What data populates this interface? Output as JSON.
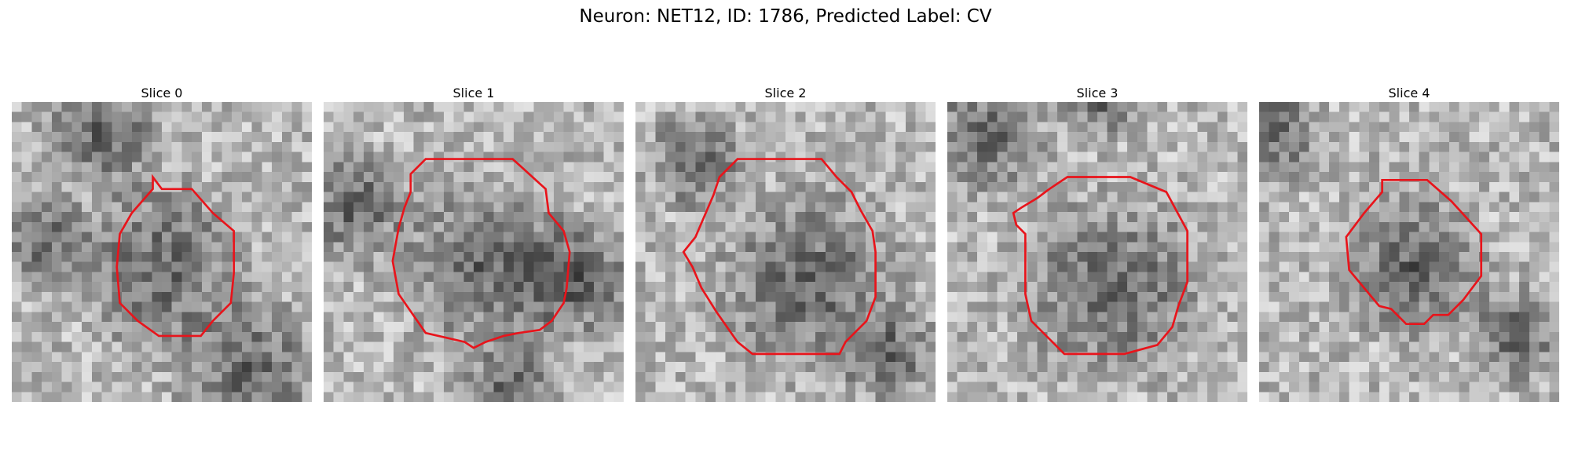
{
  "figure": {
    "title": "Neuron: NET12, ID: 1786, Predicted Label: CV",
    "contour_color": "#e8141b"
  },
  "slices": [
    {
      "label": "Slice 0",
      "seed": 11,
      "dark_blobs": [
        [
          0.5,
          0.55,
          0.35
        ],
        [
          0.3,
          0.1,
          0.25
        ],
        [
          0.8,
          0.9,
          0.3
        ],
        [
          0.1,
          0.45,
          0.2
        ]
      ],
      "contour": [
        [
          0.47,
          0.25
        ],
        [
          0.5,
          0.29
        ],
        [
          0.6,
          0.29
        ],
        [
          0.67,
          0.37
        ],
        [
          0.74,
          0.43
        ],
        [
          0.74,
          0.57
        ],
        [
          0.73,
          0.67
        ],
        [
          0.67,
          0.73
        ],
        [
          0.63,
          0.78
        ],
        [
          0.49,
          0.78
        ],
        [
          0.42,
          0.73
        ],
        [
          0.36,
          0.67
        ],
        [
          0.35,
          0.55
        ],
        [
          0.36,
          0.44
        ],
        [
          0.4,
          0.37
        ],
        [
          0.47,
          0.29
        ]
      ]
    },
    {
      "label": "Slice 1",
      "seed": 23,
      "dark_blobs": [
        [
          0.55,
          0.55,
          0.35
        ],
        [
          0.1,
          0.35,
          0.25
        ],
        [
          0.62,
          0.95,
          0.2
        ],
        [
          0.85,
          0.6,
          0.25
        ]
      ],
      "contour": [
        [
          0.34,
          0.19
        ],
        [
          0.63,
          0.19
        ],
        [
          0.74,
          0.29
        ],
        [
          0.75,
          0.37
        ],
        [
          0.8,
          0.43
        ],
        [
          0.82,
          0.5
        ],
        [
          0.81,
          0.62
        ],
        [
          0.8,
          0.67
        ],
        [
          0.76,
          0.73
        ],
        [
          0.72,
          0.76
        ],
        [
          0.65,
          0.77
        ],
        [
          0.6,
          0.78
        ],
        [
          0.54,
          0.8
        ],
        [
          0.5,
          0.82
        ],
        [
          0.47,
          0.8
        ],
        [
          0.34,
          0.77
        ],
        [
          0.25,
          0.64
        ],
        [
          0.23,
          0.53
        ],
        [
          0.25,
          0.42
        ],
        [
          0.27,
          0.35
        ],
        [
          0.29,
          0.3
        ],
        [
          0.29,
          0.24
        ]
      ]
    },
    {
      "label": "Slice 2",
      "seed": 37,
      "dark_blobs": [
        [
          0.58,
          0.6,
          0.38
        ],
        [
          0.2,
          0.2,
          0.2
        ],
        [
          0.85,
          0.85,
          0.2
        ]
      ],
      "contour": [
        [
          0.34,
          0.19
        ],
        [
          0.62,
          0.19
        ],
        [
          0.67,
          0.25
        ],
        [
          0.72,
          0.3
        ],
        [
          0.75,
          0.36
        ],
        [
          0.79,
          0.43
        ],
        [
          0.8,
          0.5
        ],
        [
          0.8,
          0.65
        ],
        [
          0.77,
          0.73
        ],
        [
          0.7,
          0.8
        ],
        [
          0.68,
          0.84
        ],
        [
          0.57,
          0.84
        ],
        [
          0.39,
          0.84
        ],
        [
          0.34,
          0.8
        ],
        [
          0.27,
          0.7
        ],
        [
          0.22,
          0.62
        ],
        [
          0.19,
          0.55
        ],
        [
          0.16,
          0.5
        ],
        [
          0.2,
          0.45
        ],
        [
          0.23,
          0.38
        ],
        [
          0.26,
          0.31
        ],
        [
          0.28,
          0.25
        ],
        [
          0.31,
          0.22
        ]
      ]
    },
    {
      "label": "Slice 3",
      "seed": 53,
      "dark_blobs": [
        [
          0.55,
          0.62,
          0.38
        ],
        [
          0.12,
          0.12,
          0.25
        ],
        [
          0.5,
          0.0,
          0.15
        ]
      ],
      "contour": [
        [
          0.4,
          0.25
        ],
        [
          0.61,
          0.25
        ],
        [
          0.73,
          0.3
        ],
        [
          0.8,
          0.43
        ],
        [
          0.8,
          0.6
        ],
        [
          0.77,
          0.68
        ],
        [
          0.75,
          0.75
        ],
        [
          0.7,
          0.81
        ],
        [
          0.59,
          0.84
        ],
        [
          0.39,
          0.84
        ],
        [
          0.28,
          0.73
        ],
        [
          0.26,
          0.64
        ],
        [
          0.26,
          0.44
        ],
        [
          0.23,
          0.41
        ],
        [
          0.22,
          0.37
        ],
        [
          0.25,
          0.35
        ],
        [
          0.3,
          0.32
        ],
        [
          0.34,
          0.29
        ]
      ]
    },
    {
      "label": "Slice 4",
      "seed": 71,
      "dark_blobs": [
        [
          0.52,
          0.55,
          0.3
        ],
        [
          0.05,
          0.1,
          0.2
        ],
        [
          0.85,
          0.78,
          0.2
        ]
      ],
      "contour": [
        [
          0.41,
          0.26
        ],
        [
          0.56,
          0.26
        ],
        [
          0.64,
          0.33
        ],
        [
          0.74,
          0.44
        ],
        [
          0.74,
          0.58
        ],
        [
          0.68,
          0.66
        ],
        [
          0.63,
          0.71
        ],
        [
          0.58,
          0.71
        ],
        [
          0.55,
          0.74
        ],
        [
          0.49,
          0.74
        ],
        [
          0.44,
          0.69
        ],
        [
          0.4,
          0.68
        ],
        [
          0.35,
          0.62
        ],
        [
          0.3,
          0.56
        ],
        [
          0.29,
          0.45
        ],
        [
          0.35,
          0.37
        ],
        [
          0.41,
          0.3
        ]
      ]
    }
  ]
}
